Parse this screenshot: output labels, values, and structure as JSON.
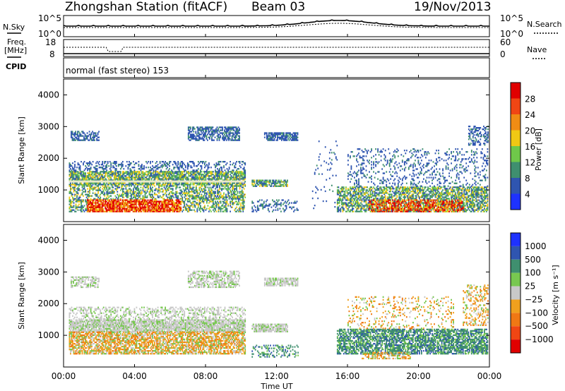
{
  "header": {
    "title": "Zhongshan Station (fitACF)",
    "beam": "Beam 03",
    "date": "19/Nov/2013"
  },
  "panels": {
    "nsky": {
      "left_label": "N.Sky",
      "left_ticks": [
        "10^5",
        "10^0"
      ],
      "right_ticks": [
        "10^5",
        "10^0"
      ],
      "right_label": "N.Search"
    },
    "freq": {
      "left_label_1": "Freq.",
      "left_label_2": "[MHz]",
      "left_ticks": [
        "18",
        "8"
      ],
      "right_ticks": [
        "60",
        "0"
      ],
      "right_label": "Nave"
    },
    "cpid": {
      "label": "CPID",
      "text": "normal (fast stereo) 153"
    }
  },
  "chart_data": [
    {
      "type": "heatmap",
      "name": "power",
      "ylabel": "Slant Range [km]",
      "y_ticks": [
        "1000",
        "2000",
        "3000",
        "4000"
      ],
      "ylim": [
        0,
        4500
      ],
      "xlim": [
        "00:00",
        "24:00"
      ],
      "colorbar_label": "Power [dB]",
      "colorbar_ticks": [
        "4",
        "8",
        "12",
        "16",
        "20",
        "24",
        "28"
      ],
      "colors": [
        "#1e32ff",
        "#2f55b0",
        "#3f8f6f",
        "#6fc84a",
        "#f0c814",
        "#f08c14",
        "#f04614",
        "#e00000"
      ]
    },
    {
      "type": "heatmap",
      "name": "velocity",
      "ylabel": "Slant Range [km]",
      "y_ticks": [
        "1000",
        "2000",
        "3000",
        "4000"
      ],
      "ylim": [
        0,
        4500
      ],
      "xlim": [
        "00:00",
        "24:00"
      ],
      "xlabel": "Time UT",
      "x_ticks": [
        "00:00",
        "04:00",
        "08:00",
        "12:00",
        "16:00",
        "20:00",
        "00:00"
      ],
      "colorbar_label": "Velocity [m s⁻¹]",
      "colorbar_ticks": [
        "1000",
        "500",
        "100",
        "25",
        "−25",
        "−100",
        "−500",
        "−1000"
      ],
      "colors": [
        "#1e32ff",
        "#2f55b0",
        "#3f8f6f",
        "#78c850",
        "#c8c8c8",
        "#f0a01e",
        "#f07814",
        "#f04614",
        "#e00000"
      ]
    }
  ]
}
